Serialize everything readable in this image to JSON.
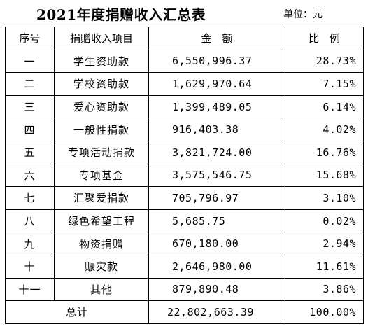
{
  "title": "2021年度捐赠收入汇总表",
  "unit": "单位：元",
  "headers": {
    "seq": "序号",
    "item": "捐赠收入项目",
    "amount": "金　额",
    "ratio": "比　例"
  },
  "rows": [
    {
      "seq": "一",
      "item": "学生资助款",
      "amount": "6,550,996.37",
      "ratio": "28.73%"
    },
    {
      "seq": "二",
      "item": "学校资助款",
      "amount": "1,629,970.64",
      "ratio": "7.15%"
    },
    {
      "seq": "三",
      "item": "爱心资助款",
      "amount": "1,399,489.05",
      "ratio": "6.14%"
    },
    {
      "seq": "四",
      "item": "一般性捐款",
      "amount": "916,403.38",
      "ratio": "4.02%"
    },
    {
      "seq": "五",
      "item": "专项活动捐款",
      "amount": "3,821,724.00",
      "ratio": "16.76%"
    },
    {
      "seq": "六",
      "item": "专项基金",
      "amount": "3,575,546.75",
      "ratio": "15.68%"
    },
    {
      "seq": "七",
      "item": "汇聚爱捐款",
      "amount": "705,796.97",
      "ratio": "3.10%"
    },
    {
      "seq": "八",
      "item": "绿色希望工程",
      "amount": "5,685.75",
      "ratio": "0.02%"
    },
    {
      "seq": "九",
      "item": "物资捐赠",
      "amount": "670,180.00",
      "ratio": "2.94%"
    },
    {
      "seq": "十",
      "item": "赈灾款",
      "amount": "2,646,980.00",
      "ratio": "11.61%"
    },
    {
      "seq": "十一",
      "item": "其他",
      "amount": "879,890.48",
      "ratio": "3.86%"
    }
  ],
  "total": {
    "label": "总计",
    "amount": "22,802,663.39",
    "ratio": "100.00%"
  }
}
